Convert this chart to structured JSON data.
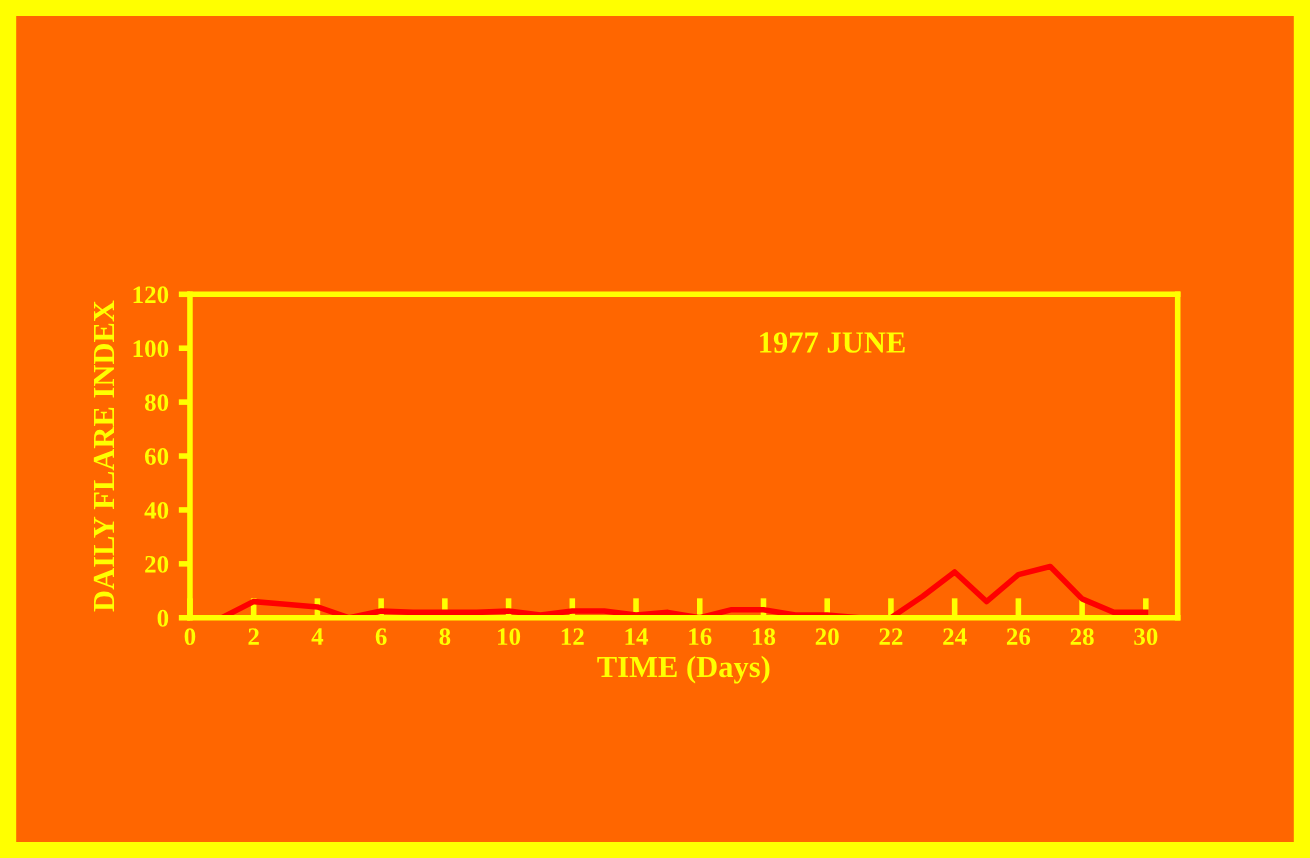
{
  "chart_data": {
    "type": "line",
    "xlabel": "TIME (Days)",
    "ylabel": "DAILY FLARE INDEX",
    "annotations": [
      "1977 JUNE"
    ],
    "x": [
      1,
      2,
      3,
      4,
      5,
      6,
      7,
      8,
      9,
      10,
      11,
      12,
      13,
      14,
      15,
      16,
      17,
      18,
      19,
      20,
      21,
      22,
      23,
      24,
      25,
      26,
      27,
      28,
      29,
      30
    ],
    "series": [
      {
        "color": "#ff0000",
        "values": [
          0,
          6,
          5,
          4,
          0,
          2.5,
          2,
          2,
          2,
          2.5,
          1,
          2.5,
          2.5,
          1,
          2,
          0,
          3,
          3,
          1,
          1,
          0,
          0,
          8,
          17,
          6,
          16,
          19,
          7,
          2,
          2
        ]
      }
    ],
    "xlim": [
      0,
      31
    ],
    "xticks": [
      0,
      2,
      4,
      6,
      8,
      10,
      12,
      14,
      16,
      18,
      20,
      22,
      24,
      26,
      28,
      30
    ],
    "ylim": [
      0,
      120
    ],
    "yticks": [
      0,
      20,
      40,
      60,
      80,
      100,
      120
    ],
    "grid": false,
    "legend": false,
    "marker": "none",
    "line_style": "solid"
  }
}
